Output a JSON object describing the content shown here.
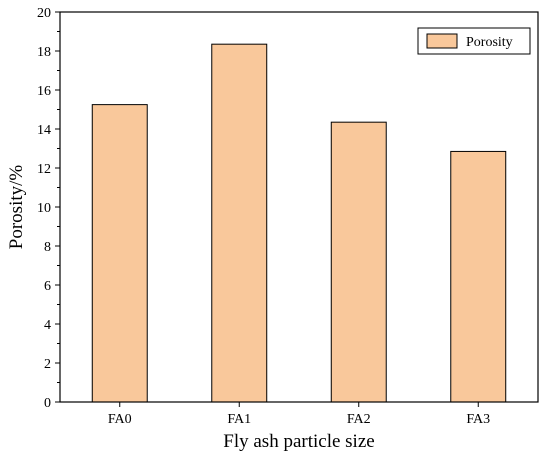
{
  "chart_data": {
    "type": "bar",
    "title": "",
    "xlabel": "Fly ash particle size",
    "ylabel": "Porosity/%",
    "categories": [
      "FA0",
      "FA1",
      "FA2",
      "FA3"
    ],
    "series": [
      {
        "name": "Porosity",
        "values": [
          15.25,
          18.35,
          14.35,
          12.85
        ]
      }
    ],
    "ylim": [
      0,
      20
    ],
    "yticks": [
      0,
      2,
      4,
      6,
      8,
      10,
      12,
      14,
      16,
      18,
      20
    ],
    "grid": false,
    "legend_position": "top-right",
    "colors": {
      "bar_fill": "#f9c89b",
      "bar_stroke": "#000000",
      "axis": "#000000"
    }
  }
}
